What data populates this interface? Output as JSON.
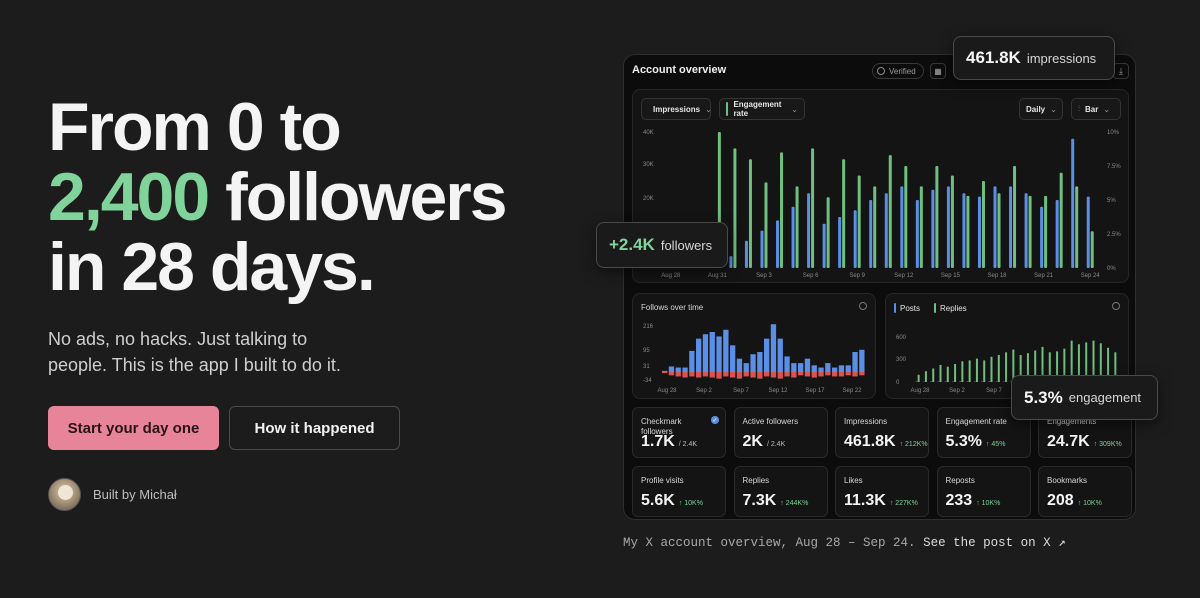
{
  "hero": {
    "headline_line1": "From 0 to",
    "headline_accent": "2,400",
    "headline_line2_rest": " followers",
    "headline_line3": "in 28 days.",
    "subtext": "No ads, no hacks. Just talking to people. This is the app I built to do it.",
    "primary_cta": "Start your day one",
    "secondary_cta": "How it happened",
    "author": "Built by Michał"
  },
  "colors": {
    "accent_green": "#7fd39b",
    "cta_pink": "#e8849a",
    "bar_blue": "#5b8fe6",
    "bar_green": "#6fbf80",
    "bar_red": "#d9534f"
  },
  "panel": {
    "title": "Account overview",
    "verified": "Verified",
    "calendar_icon": "calendar-icon",
    "download_icon": "download-icon",
    "filters": {
      "metric1": "Impressions",
      "metric2": "Engagement rate",
      "interval": "Daily",
      "chart_type": "Bar"
    }
  },
  "callouts": {
    "impressions_value": "461.8K",
    "impressions_label": "impressions",
    "followers_value": "+2.4K",
    "followers_label": "followers",
    "engagement_value": "5.3%",
    "engagement_label": "engagement"
  },
  "chart_data": [
    {
      "type": "bar",
      "title": "",
      "x": [
        "Aug 28",
        "Aug 29",
        "Aug 30",
        "Aug 31",
        "Sep 1",
        "Sep 2",
        "Sep 3",
        "Sep 4",
        "Sep 5",
        "Sep 6",
        "Sep 7",
        "Sep 8",
        "Sep 9",
        "Sep 10",
        "Sep 11",
        "Sep 12",
        "Sep 13",
        "Sep 14",
        "Sep 15",
        "Sep 16",
        "Sep 17",
        "Sep 18",
        "Sep 19",
        "Sep 20",
        "Sep 21",
        "Sep 22",
        "Sep 23",
        "Sep 24"
      ],
      "tick_labels": [
        "Aug 28",
        "Aug 31",
        "Sep 3",
        "Sep 6",
        "Sep 9",
        "Sep 12",
        "Sep 15",
        "Sep 18",
        "Sep 21",
        "Sep 24"
      ],
      "y_left_ticks": [
        "40K",
        "30K",
        "20K",
        "10K"
      ],
      "y_right_ticks": [
        "10%",
        "7.5%",
        "5%",
        "2.5%",
        "0%"
      ],
      "ylim_left": [
        0,
        40000
      ],
      "ylim_right": [
        0,
        10
      ],
      "series": [
        {
          "name": "Impressions",
          "axis": "left",
          "values": [
            2000,
            3000,
            4500,
            11000,
            3500,
            8000,
            11000,
            14000,
            18000,
            22000,
            13000,
            15000,
            17000,
            20000,
            22000,
            24000,
            20000,
            23000,
            24000,
            22000,
            21000,
            24000,
            24000,
            22000,
            18000,
            20000,
            38000,
            21000
          ]
        },
        {
          "name": "Engagement rate",
          "axis": "right",
          "values": [
            1.0,
            1.5,
            2.0,
            10.0,
            8.8,
            8.0,
            6.3,
            8.5,
            6.0,
            8.8,
            5.2,
            8.0,
            6.8,
            6.0,
            8.3,
            7.5,
            6.0,
            7.5,
            6.8,
            5.3,
            6.4,
            5.5,
            7.5,
            5.3,
            5.3,
            7.0,
            6.0,
            2.7
          ]
        }
      ]
    },
    {
      "type": "bar",
      "title": "Follows over time",
      "tick_labels": [
        "Aug 28",
        "Sep 2",
        "Sep 7",
        "Sep 12",
        "Sep 17",
        "Sep 22"
      ],
      "y_ticks": [
        "216",
        "95",
        "31",
        "-34"
      ],
      "series": [
        {
          "name": "Follows",
          "values": [
            5,
            25,
            20,
            20,
            95,
            150,
            170,
            180,
            160,
            190,
            120,
            60,
            40,
            80,
            90,
            150,
            215,
            150,
            70,
            40,
            40,
            60,
            30,
            20,
            40,
            20,
            30,
            30,
            90,
            100
          ]
        },
        {
          "name": "Unfollows",
          "values": [
            -5,
            -15,
            -20,
            -25,
            -20,
            -25,
            -20,
            -25,
            -30,
            -20,
            -25,
            -30,
            -20,
            -25,
            -30,
            -20,
            -25,
            -30,
            -20,
            -25,
            -15,
            -20,
            -25,
            -20,
            -15,
            -20,
            -20,
            -15,
            -20,
            -15
          ]
        }
      ]
    },
    {
      "type": "bar",
      "title": "",
      "tick_labels": [
        "Aug 28",
        "Sep 2",
        "Sep 7"
      ],
      "y_ticks": [
        "600",
        "300",
        "0"
      ],
      "series": [
        {
          "name": "Posts",
          "values": [
            5,
            4,
            6,
            5,
            6,
            5,
            7,
            6,
            5,
            6,
            7,
            6,
            5,
            6,
            7,
            5,
            6,
            5,
            6,
            5,
            6,
            5,
            6,
            5,
            6,
            5,
            6,
            5
          ]
        },
        {
          "name": "Replies",
          "values": [
            80,
            120,
            150,
            190,
            170,
            200,
            230,
            240,
            260,
            240,
            280,
            300,
            330,
            360,
            300,
            320,
            350,
            390,
            330,
            340,
            370,
            460,
            420,
            440,
            460,
            430,
            380,
            330
          ]
        }
      ]
    }
  ],
  "stats": [
    {
      "label": "Checkmark followers",
      "value": "1.7K",
      "sub": "/ 2.4K",
      "change": ""
    },
    {
      "label": "Active followers",
      "value": "2K",
      "sub": "/ 2.4K",
      "change": ""
    },
    {
      "label": "Impressions",
      "value": "461.8K",
      "sub": "",
      "change": "↑ 212K%"
    },
    {
      "label": "Engagement rate",
      "value": "5.3%",
      "sub": "",
      "change": "↑ 45%"
    },
    {
      "label": "Engagements",
      "value": "24.7K",
      "sub": "",
      "change": "↑ 309K%"
    },
    {
      "label": "Profile visits",
      "value": "5.6K",
      "sub": "",
      "change": "↑ 10K%"
    },
    {
      "label": "Replies",
      "value": "7.3K",
      "sub": "",
      "change": "↑ 244K%"
    },
    {
      "label": "Likes",
      "value": "11.3K",
      "sub": "",
      "change": "↑ 227K%"
    },
    {
      "label": "Reposts",
      "value": "233",
      "sub": "",
      "change": "↑ 10K%"
    },
    {
      "label": "Bookmarks",
      "value": "208",
      "sub": "",
      "change": "↑ 10K%"
    }
  ],
  "caption": {
    "text": "My X account overview, Aug 28 – Sep 24. ",
    "link": "See the post on X ↗"
  }
}
